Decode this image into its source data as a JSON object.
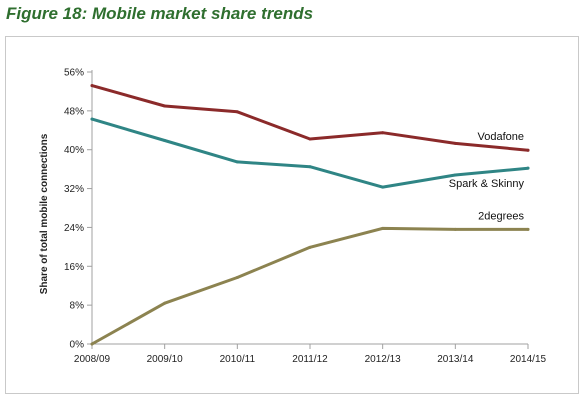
{
  "figure": {
    "title": "Figure 18: Mobile market share trends"
  },
  "colors": {
    "title": "#2f6f2f",
    "frame": "#c9c9c9",
    "axis": "#a0a0a0"
  },
  "chart_data": {
    "type": "line",
    "title": "",
    "xlabel": "",
    "ylabel": "Share of total mobile connections",
    "categories": [
      "2008/09",
      "2009/10",
      "2010/11",
      "2011/12",
      "2012/13",
      "2013/14",
      "2014/15"
    ],
    "ylim": [
      0,
      56
    ],
    "yticks": [
      0,
      8,
      16,
      24,
      32,
      40,
      48,
      56
    ],
    "ytick_labels": [
      "0%",
      "8%",
      "16%",
      "24%",
      "32%",
      "40%",
      "48%",
      "56%"
    ],
    "grid": false,
    "legend": "none (series labelled directly on the lines)",
    "series": [
      {
        "name": "Vodafone",
        "color": "#8b2a2a",
        "values": [
          53.2,
          49.0,
          47.8,
          42.2,
          43.5,
          41.3,
          39.9
        ]
      },
      {
        "name": "Spark & Skinny",
        "color": "#2f8585",
        "values": [
          46.3,
          41.9,
          37.5,
          36.5,
          32.3,
          34.8,
          36.2
        ]
      },
      {
        "name": "2degrees",
        "color": "#8c8350",
        "values": [
          0.0,
          8.4,
          13.7,
          19.9,
          23.8,
          23.6,
          23.6
        ]
      }
    ]
  }
}
